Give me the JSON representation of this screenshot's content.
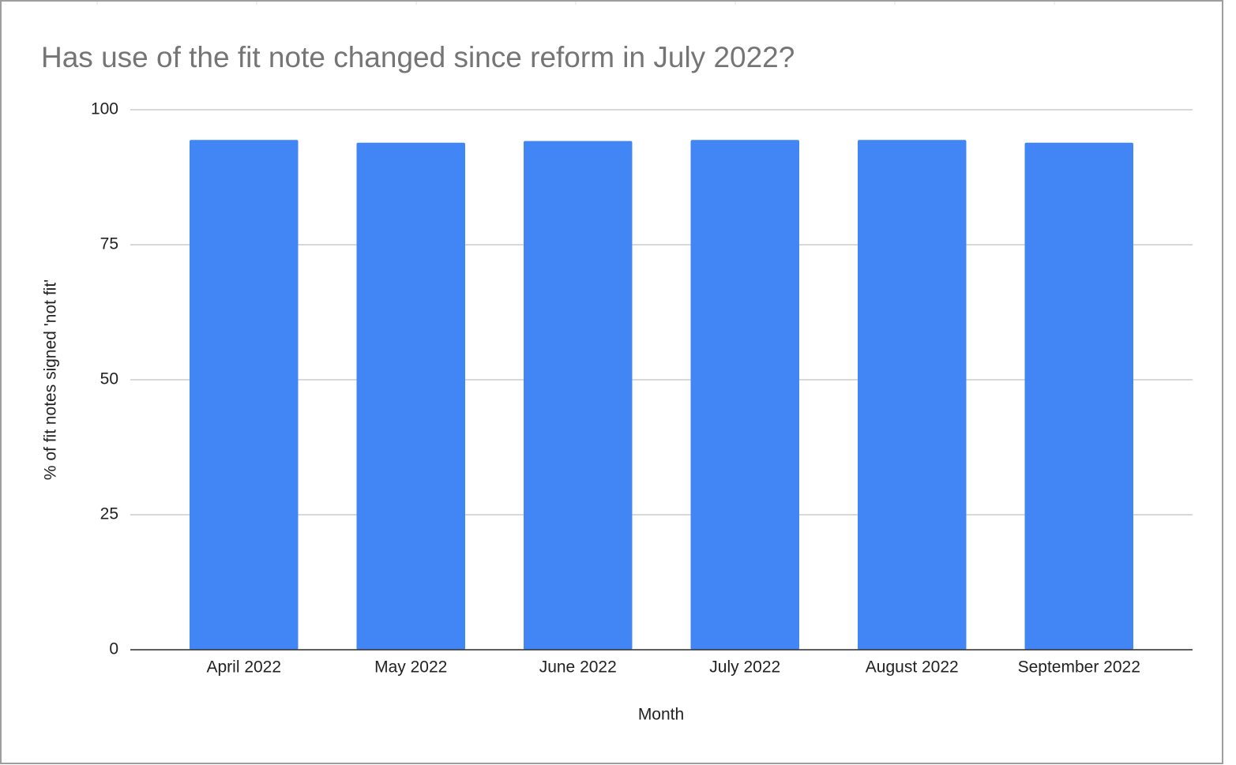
{
  "chart_data": {
    "type": "bar",
    "title": "Has use of the fit note changed since reform in July 2022?",
    "x_label": "Month",
    "y_label": "% of fit notes signed 'not fit'",
    "categories": [
      "April 2022",
      "May 2022",
      "June 2022",
      "July 2022",
      "August 2022",
      "September 2022"
    ],
    "values": [
      94.4,
      93.9,
      94.2,
      94.4,
      94.4,
      93.9
    ],
    "color": "#4285f4",
    "ylim": [
      0,
      100
    ],
    "yticks": [
      0,
      25,
      50,
      75,
      100
    ],
    "grid": true
  }
}
